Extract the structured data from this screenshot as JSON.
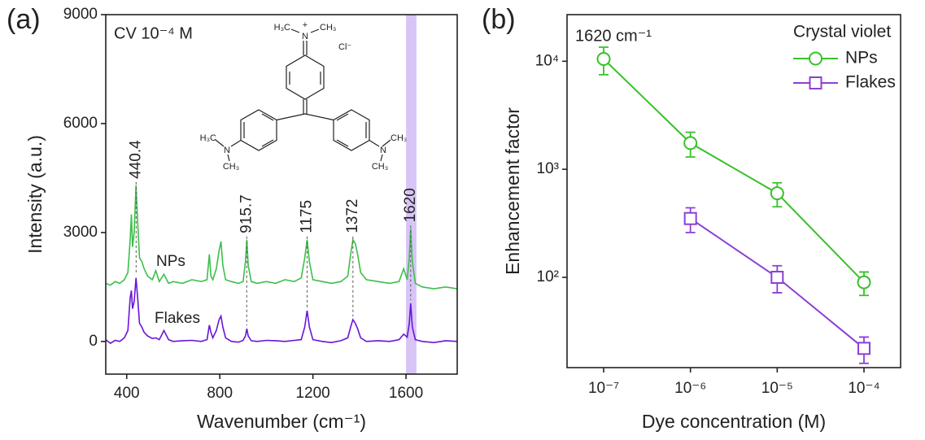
{
  "chart_data": [
    {
      "type": "line",
      "label": "(a)",
      "x_label": "Wavenumber (cm⁻¹)",
      "y_label": "Intensity (a.u.)",
      "annotation": "CV 10⁻⁴ M",
      "structure_labels": [
        "H₃C",
        "N",
        "+",
        "CH₃",
        "Cl⁻",
        "H₃C",
        "N",
        "CH₃",
        "N",
        "CH₃",
        "CH₃"
      ],
      "xlim": [
        310,
        1820
      ],
      "ylim": [
        -900,
        9000
      ],
      "xticks": [
        400,
        800,
        1200,
        1600
      ],
      "yticks": [
        0,
        3000,
        6000,
        9000
      ],
      "highlight": [
        1600,
        1645
      ],
      "highlight_color": "#b894f0",
      "x": [
        310,
        330,
        350,
        370,
        390,
        405,
        415,
        420,
        425,
        432,
        440,
        447,
        455,
        465,
        475,
        490,
        510,
        525,
        540,
        560,
        580,
        600,
        640,
        680,
        720,
        745,
        755,
        762,
        770,
        785,
        797,
        805,
        813,
        825,
        850,
        880,
        900,
        910,
        916,
        922,
        935,
        960,
        1000,
        1040,
        1080,
        1120,
        1150,
        1165,
        1175,
        1185,
        1200,
        1240,
        1280,
        1320,
        1350,
        1362,
        1372,
        1382,
        1392,
        1405,
        1430,
        1480,
        1530,
        1570,
        1590,
        1605,
        1614,
        1620,
        1627,
        1640,
        1670,
        1720,
        1770,
        1820
      ],
      "series": [
        {
          "name": "NPs",
          "color": "#3dbf4a",
          "values": [
            1600,
            1550,
            1650,
            1600,
            1700,
            1900,
            2800,
            3500,
            2600,
            3000,
            4300,
            3300,
            2300,
            2200,
            2000,
            1800,
            1700,
            1950,
            1650,
            1850,
            1600,
            1650,
            1600,
            1700,
            1650,
            1700,
            2400,
            1800,
            1700,
            2000,
            2500,
            2750,
            2100,
            1700,
            1650,
            1600,
            1650,
            2200,
            2800,
            2100,
            1650,
            1600,
            1650,
            1600,
            1700,
            1650,
            1750,
            2300,
            2800,
            2200,
            1700,
            1650,
            1600,
            1650,
            1800,
            2400,
            2800,
            2700,
            2400,
            1900,
            1700,
            1650,
            1600,
            1650,
            2000,
            1700,
            2300,
            3100,
            2200,
            1600,
            1500,
            1450,
            1500,
            1450
          ]
        },
        {
          "name": "Flakes",
          "color": "#6a14d8",
          "values": [
            50,
            -50,
            30,
            0,
            100,
            300,
            1200,
            1400,
            900,
            1100,
            1750,
            1200,
            500,
            400,
            250,
            150,
            80,
            100,
            50,
            300,
            50,
            0,
            20,
            30,
            0,
            50,
            450,
            250,
            100,
            300,
            600,
            700,
            400,
            100,
            0,
            -20,
            30,
            150,
            350,
            150,
            20,
            0,
            30,
            20,
            0,
            30,
            50,
            400,
            850,
            400,
            50,
            0,
            -30,
            20,
            100,
            400,
            600,
            500,
            350,
            100,
            0,
            20,
            0,
            50,
            200,
            120,
            500,
            1050,
            400,
            50,
            0,
            -30,
            20,
            0
          ]
        }
      ],
      "peak_labels": [
        {
          "value": 440.4,
          "label": "440.4"
        },
        {
          "value": 915.7,
          "label": "915.7"
        },
        {
          "value": 1175,
          "label": "1175"
        },
        {
          "value": 1372,
          "label": "1372"
        },
        {
          "value": 1620,
          "label": "1620"
        }
      ],
      "peak_label_color": "#6a2bbf"
    },
    {
      "type": "errorbar",
      "label": "(b)",
      "x_label": "Dye concentration (M)",
      "y_label": "Enhancement factor",
      "annotation": "1620 cm⁻¹",
      "categories": [
        "10⁻⁷",
        "10⁻⁶",
        "10⁻⁵",
        "10⁻⁴"
      ],
      "log_y": true,
      "ylim": [
        14.6,
        27000
      ],
      "yticks": [
        {
          "value": 100,
          "label": "10²"
        },
        {
          "value": 1000,
          "label": "10³"
        },
        {
          "value": 10000,
          "label": "10⁴"
        }
      ],
      "legend": "upper right",
      "legend_title": "Crystal violet",
      "series": [
        {
          "name": "NPs",
          "color": "#38c12a",
          "marker": "circle",
          "values": [
            10500,
            1750,
            600,
            90
          ],
          "errors": [
            3000,
            450,
            150,
            22
          ]
        },
        {
          "name": "Flakes",
          "color": "#8c3fd6",
          "marker": "square",
          "values": [
            null,
            350,
            100,
            22
          ],
          "errors": [
            null,
            90,
            28,
            6
          ]
        }
      ]
    }
  ]
}
